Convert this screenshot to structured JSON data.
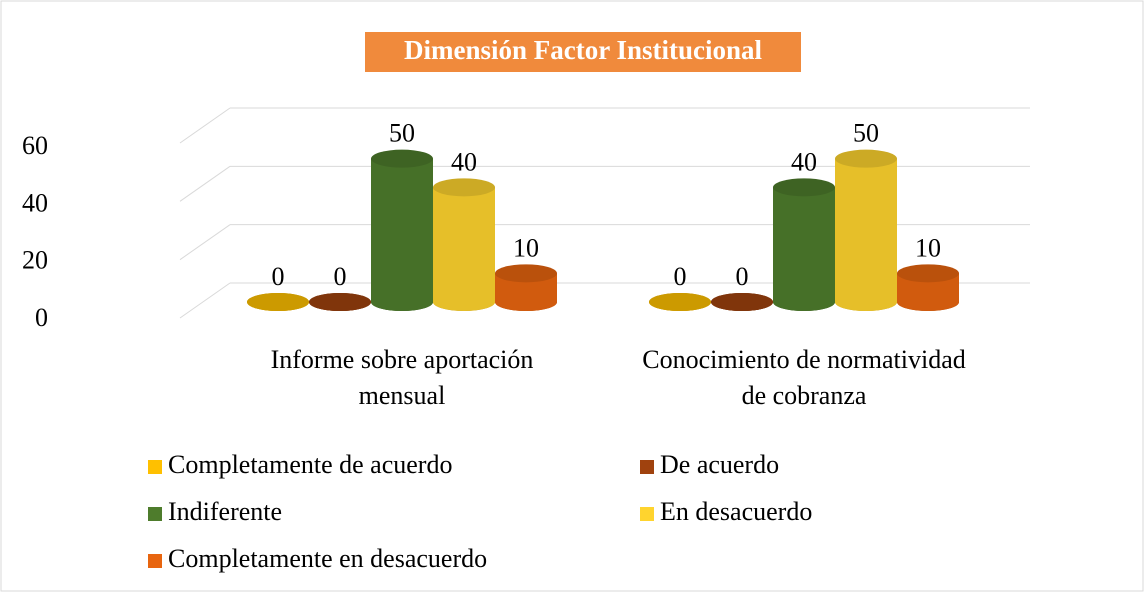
{
  "chart_data": {
    "type": "bar",
    "title": "Dimensión Factor Institucional",
    "categories": [
      "Informe sobre aportación mensual",
      "Conocimiento de normatividad de cobranza"
    ],
    "series": [
      {
        "name": "Completamente de acuerdo",
        "color": "#FFC000",
        "values": [
          0,
          0
        ]
      },
      {
        "name": "De acuerdo",
        "color": "#A0420E",
        "values": [
          0,
          0
        ]
      },
      {
        "name": "Indiferente",
        "color": "#4E7C2C",
        "values": [
          50,
          40
        ]
      },
      {
        "name": "En desacuerdo",
        "color": "#FFD42E",
        "values": [
          40,
          50
        ]
      },
      {
        "name": "Completamente en desacuerdo",
        "color": "#E8650F",
        "values": [
          10,
          10
        ]
      }
    ],
    "ylim": [
      0,
      60
    ],
    "yticks": [
      0,
      20,
      40,
      60
    ],
    "grid": true,
    "legend": "bottom"
  }
}
